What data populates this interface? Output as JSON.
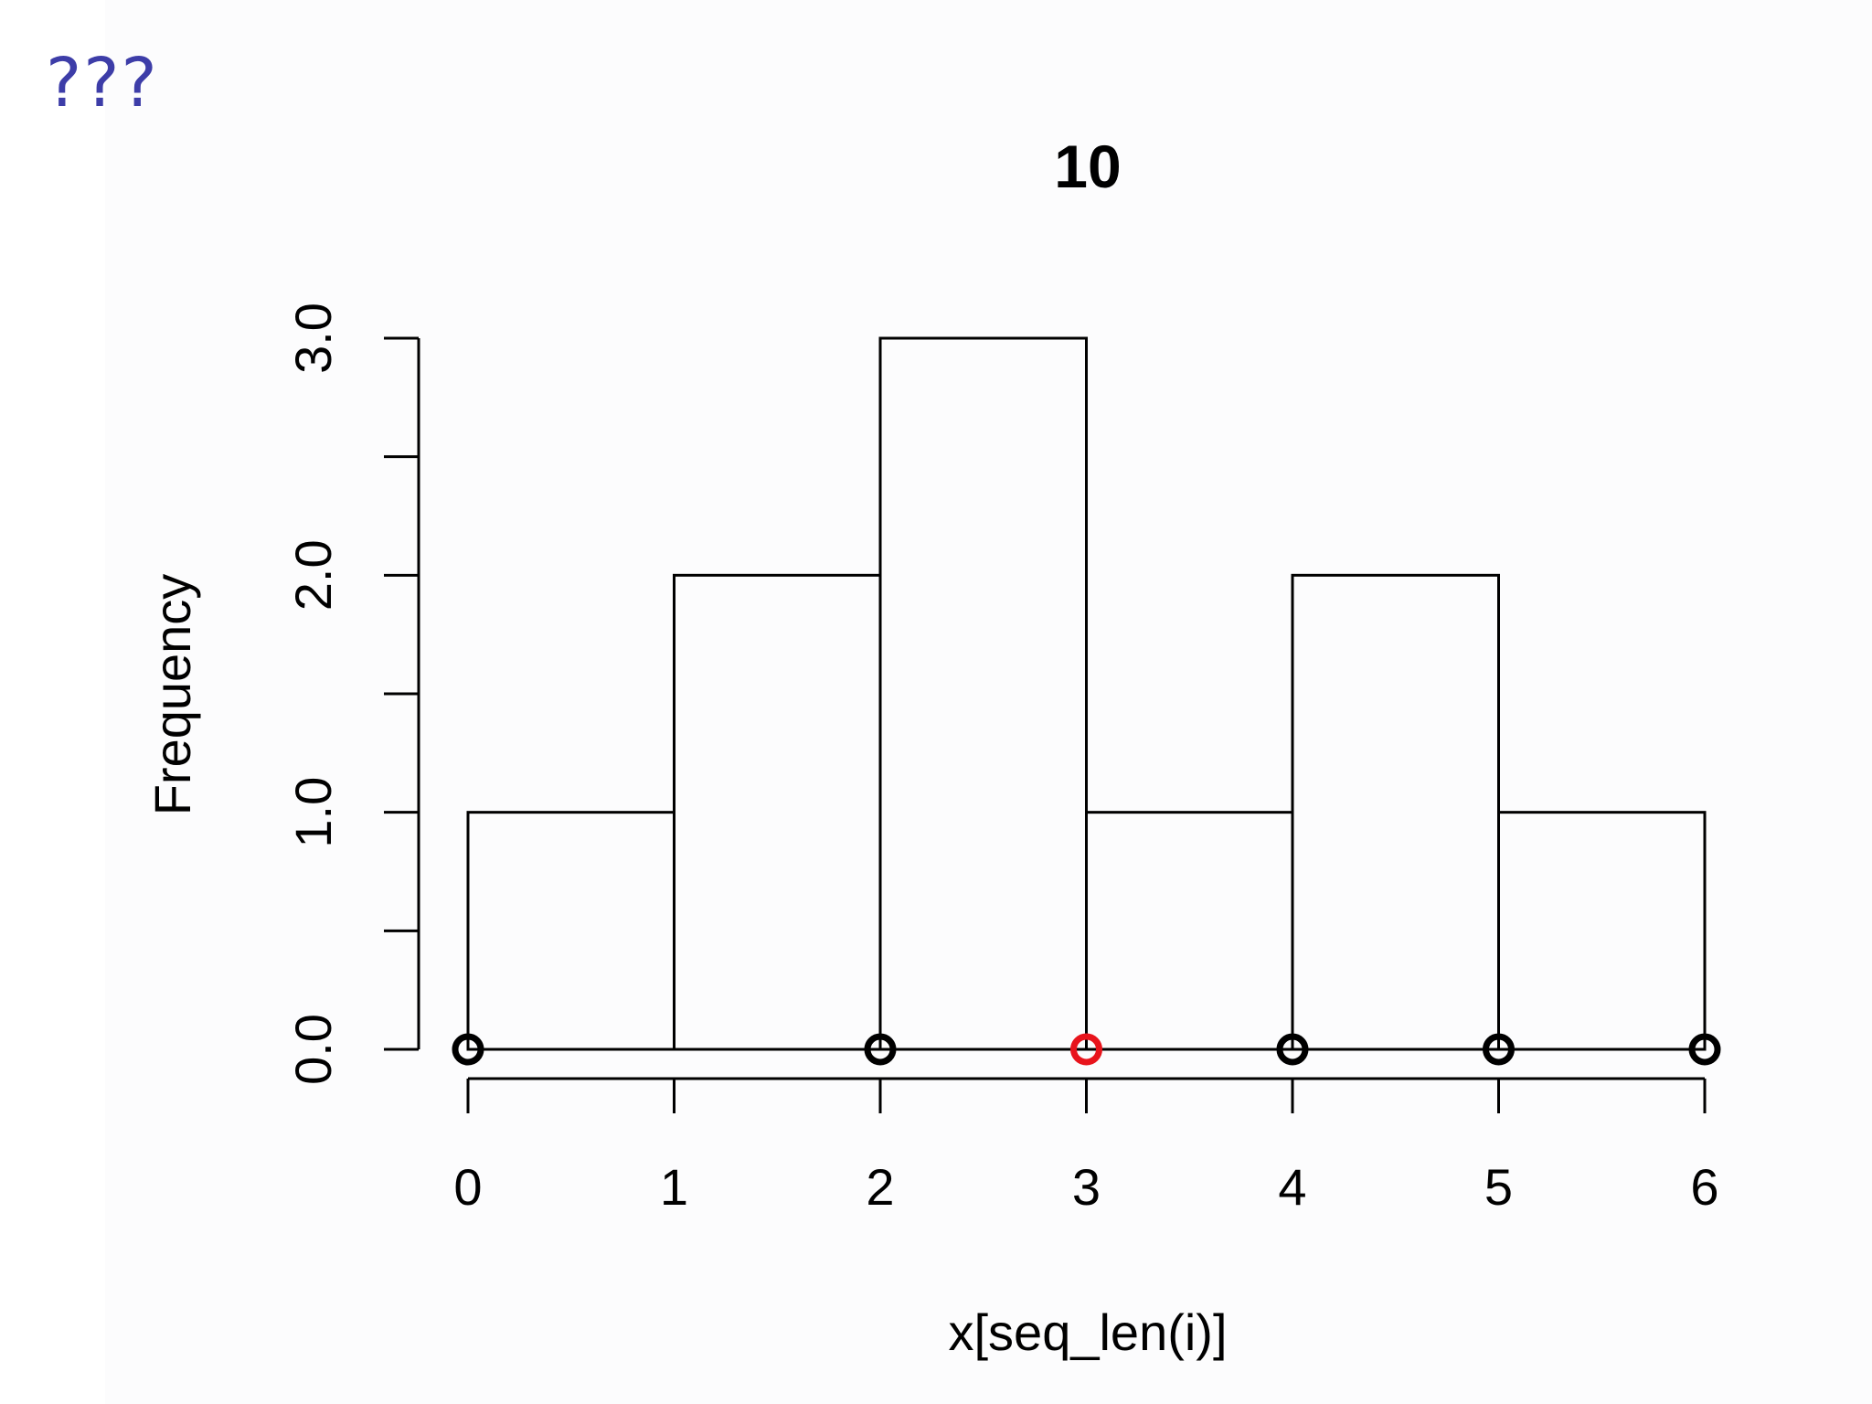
{
  "corner_label": "???",
  "chart_data": {
    "type": "bar",
    "title": "10",
    "xlabel": "x[seq_len(i)]",
    "ylabel": "Frequency",
    "bins": [
      {
        "x0": 0,
        "x1": 1,
        "count": 1
      },
      {
        "x0": 1,
        "x1": 2,
        "count": 2
      },
      {
        "x0": 2,
        "x1": 3,
        "count": 3
      },
      {
        "x0": 3,
        "x1": 4,
        "count": 1
      },
      {
        "x0": 4,
        "x1": 5,
        "count": 2
      },
      {
        "x0": 5,
        "x1": 6,
        "count": 1
      }
    ],
    "points": [
      {
        "x": 0,
        "y": 0,
        "color": "#000000"
      },
      {
        "x": 2,
        "y": 0,
        "color": "#000000"
      },
      {
        "x": 3,
        "y": 0,
        "color": "#e8141c"
      },
      {
        "x": 4,
        "y": 0,
        "color": "#000000"
      },
      {
        "x": 5,
        "y": 0,
        "color": "#000000"
      },
      {
        "x": 6,
        "y": 0,
        "color": "#000000"
      }
    ],
    "xticks": [
      0,
      1,
      2,
      3,
      4,
      5,
      6
    ],
    "xtick_labels": [
      "0",
      "1",
      "2",
      "3",
      "4",
      "5",
      "6"
    ],
    "yticks": [
      0,
      0.5,
      1,
      1.5,
      2,
      2.5,
      3
    ],
    "ytick_labels": [
      "0.0",
      "",
      "1.0",
      "",
      "2.0",
      "",
      "3.0"
    ],
    "xlim": [
      0,
      6
    ],
    "ylim": [
      0,
      3
    ],
    "grid": false,
    "legend": false
  }
}
